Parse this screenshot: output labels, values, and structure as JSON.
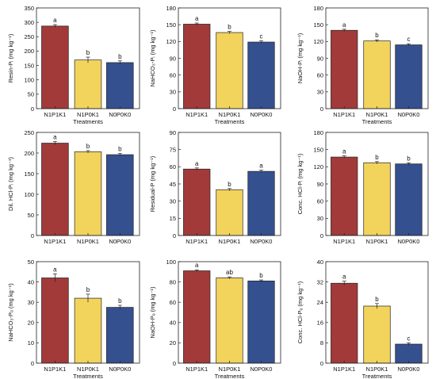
{
  "colors": {
    "N1P1K1": "#a23a3a",
    "N1P0K1": "#f2d35c",
    "N0P0K0": "#34508f"
  },
  "chart_data": [
    {
      "type": "bar",
      "categories": [
        "N1P1K1",
        "N1P0K1",
        "N0P0K0"
      ],
      "values": [
        287,
        169,
        160
      ],
      "errors": [
        5,
        10,
        6
      ],
      "letters": [
        "a",
        "b",
        "b"
      ],
      "ylabel": "Resin-Pᵢ (mg kg⁻¹)",
      "xlabel": "Treatments",
      "ylim": [
        0,
        350
      ],
      "yticks": [
        0,
        50,
        100,
        150,
        200,
        250,
        300,
        350
      ]
    },
    {
      "type": "bar",
      "categories": [
        "N1P1K1",
        "N1P0K1",
        "N0P0K0"
      ],
      "values": [
        151,
        136,
        119
      ],
      "errors": [
        2,
        2,
        2
      ],
      "letters": [
        "a",
        "b",
        "c"
      ],
      "ylabel": "NaHCO₃-Pᵢ (mg kg⁻¹)",
      "xlabel": "Treatments",
      "ylim": [
        0,
        180
      ],
      "yticks": [
        0,
        30,
        60,
        90,
        120,
        150,
        180
      ]
    },
    {
      "type": "bar",
      "categories": [
        "N1P1K1",
        "N1P0K1",
        "N0P0K0"
      ],
      "values": [
        140,
        121,
        114
      ],
      "errors": [
        2,
        2,
        2
      ],
      "letters": [
        "a",
        "b",
        "c"
      ],
      "ylabel": "NaOH-Pᵢ (mg kg⁻¹)",
      "xlabel": "Treatments",
      "ylim": [
        0,
        180
      ],
      "yticks": [
        0,
        30,
        60,
        90,
        120,
        150,
        180
      ]
    },
    {
      "type": "bar",
      "categories": [
        "N1P1K1",
        "N1P0K1",
        "N0P0K0"
      ],
      "values": [
        224,
        203,
        196
      ],
      "errors": [
        4,
        3,
        3
      ],
      "letters": [
        "a",
        "b",
        "b"
      ],
      "ylabel": "Dil. HCl-Pᵢ (mg kg⁻¹)",
      "xlabel": "",
      "ylim": [
        0,
        250
      ],
      "yticks": [
        0,
        50,
        100,
        150,
        200,
        250
      ]
    },
    {
      "type": "bar",
      "categories": [
        "N1P1K1",
        "N1P0K1",
        "N0P0K0"
      ],
      "values": [
        58,
        40,
        56
      ],
      "errors": [
        1,
        1,
        1
      ],
      "letters": [
        "a",
        "b",
        "a"
      ],
      "ylabel": "Residual-P (mg kg⁻¹)",
      "xlabel": "",
      "ylim": [
        0,
        90
      ],
      "yticks": [
        0,
        15,
        30,
        45,
        60,
        75,
        90
      ]
    },
    {
      "type": "bar",
      "categories": [
        "N1P1K1",
        "N1P0K1",
        "N0P0K0"
      ],
      "values": [
        137,
        127,
        125
      ],
      "errors": [
        2,
        2,
        2
      ],
      "letters": [
        "a",
        "b",
        "b"
      ],
      "ylabel": "Conc. HCl-Pᵢ (mg kg⁻¹)",
      "xlabel": "",
      "ylim": [
        0,
        180
      ],
      "yticks": [
        0,
        30,
        60,
        90,
        120,
        150,
        180
      ]
    },
    {
      "type": "bar",
      "categories": [
        "N1P1K1",
        "N1P0K1",
        "N0P0K0"
      ],
      "values": [
        42,
        32,
        27.5
      ],
      "errors": [
        2,
        2,
        1
      ],
      "letters": [
        "a",
        "b",
        "b"
      ],
      "ylabel": "NaHCO₃-Pₒ (mg kg⁻¹)",
      "xlabel": "Treatments",
      "ylim": [
        0,
        50
      ],
      "yticks": [
        0,
        10,
        20,
        30,
        40,
        50
      ]
    },
    {
      "type": "bar",
      "categories": [
        "N1P1K1",
        "N1P0K1",
        "N0P0K0"
      ],
      "values": [
        91,
        84,
        81
      ],
      "errors": [
        1,
        1,
        1
      ],
      "letters": [
        "a",
        "ab",
        "b"
      ],
      "ylabel": "NaOH-Pₒ (mg kg⁻¹)",
      "xlabel": "Treatments",
      "ylim": [
        0,
        100
      ],
      "yticks": [
        0,
        20,
        40,
        60,
        80,
        100
      ]
    },
    {
      "type": "bar",
      "categories": [
        "N1P1K1",
        "N1P0K1",
        "N0P0K0"
      ],
      "values": [
        31.5,
        22.5,
        7.5
      ],
      "errors": [
        0.8,
        1,
        0.5
      ],
      "letters": [
        "a",
        "b",
        "c"
      ],
      "ylabel": "Conc. HCl-Pₒ (mg kg⁻¹)",
      "xlabel": "Treatments",
      "ylim": [
        0,
        40
      ],
      "yticks": [
        0,
        8,
        16,
        24,
        32,
        40
      ]
    }
  ]
}
